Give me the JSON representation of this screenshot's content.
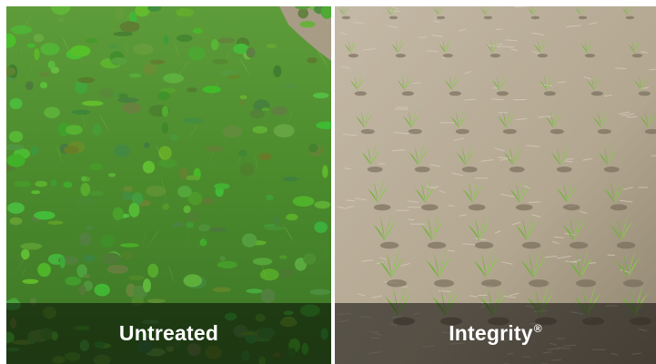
{
  "panels": [
    {
      "label": "Untreated",
      "trademark": ""
    },
    {
      "label": "Integrity",
      "trademark": "®"
    }
  ],
  "colors": {
    "weed_green": "#4e8f2e",
    "corn_green": "#7bc843",
    "soil": "#b9ad9a",
    "caption_bg": "rgba(0,0,0,0.52)",
    "caption_text": "#ffffff"
  }
}
